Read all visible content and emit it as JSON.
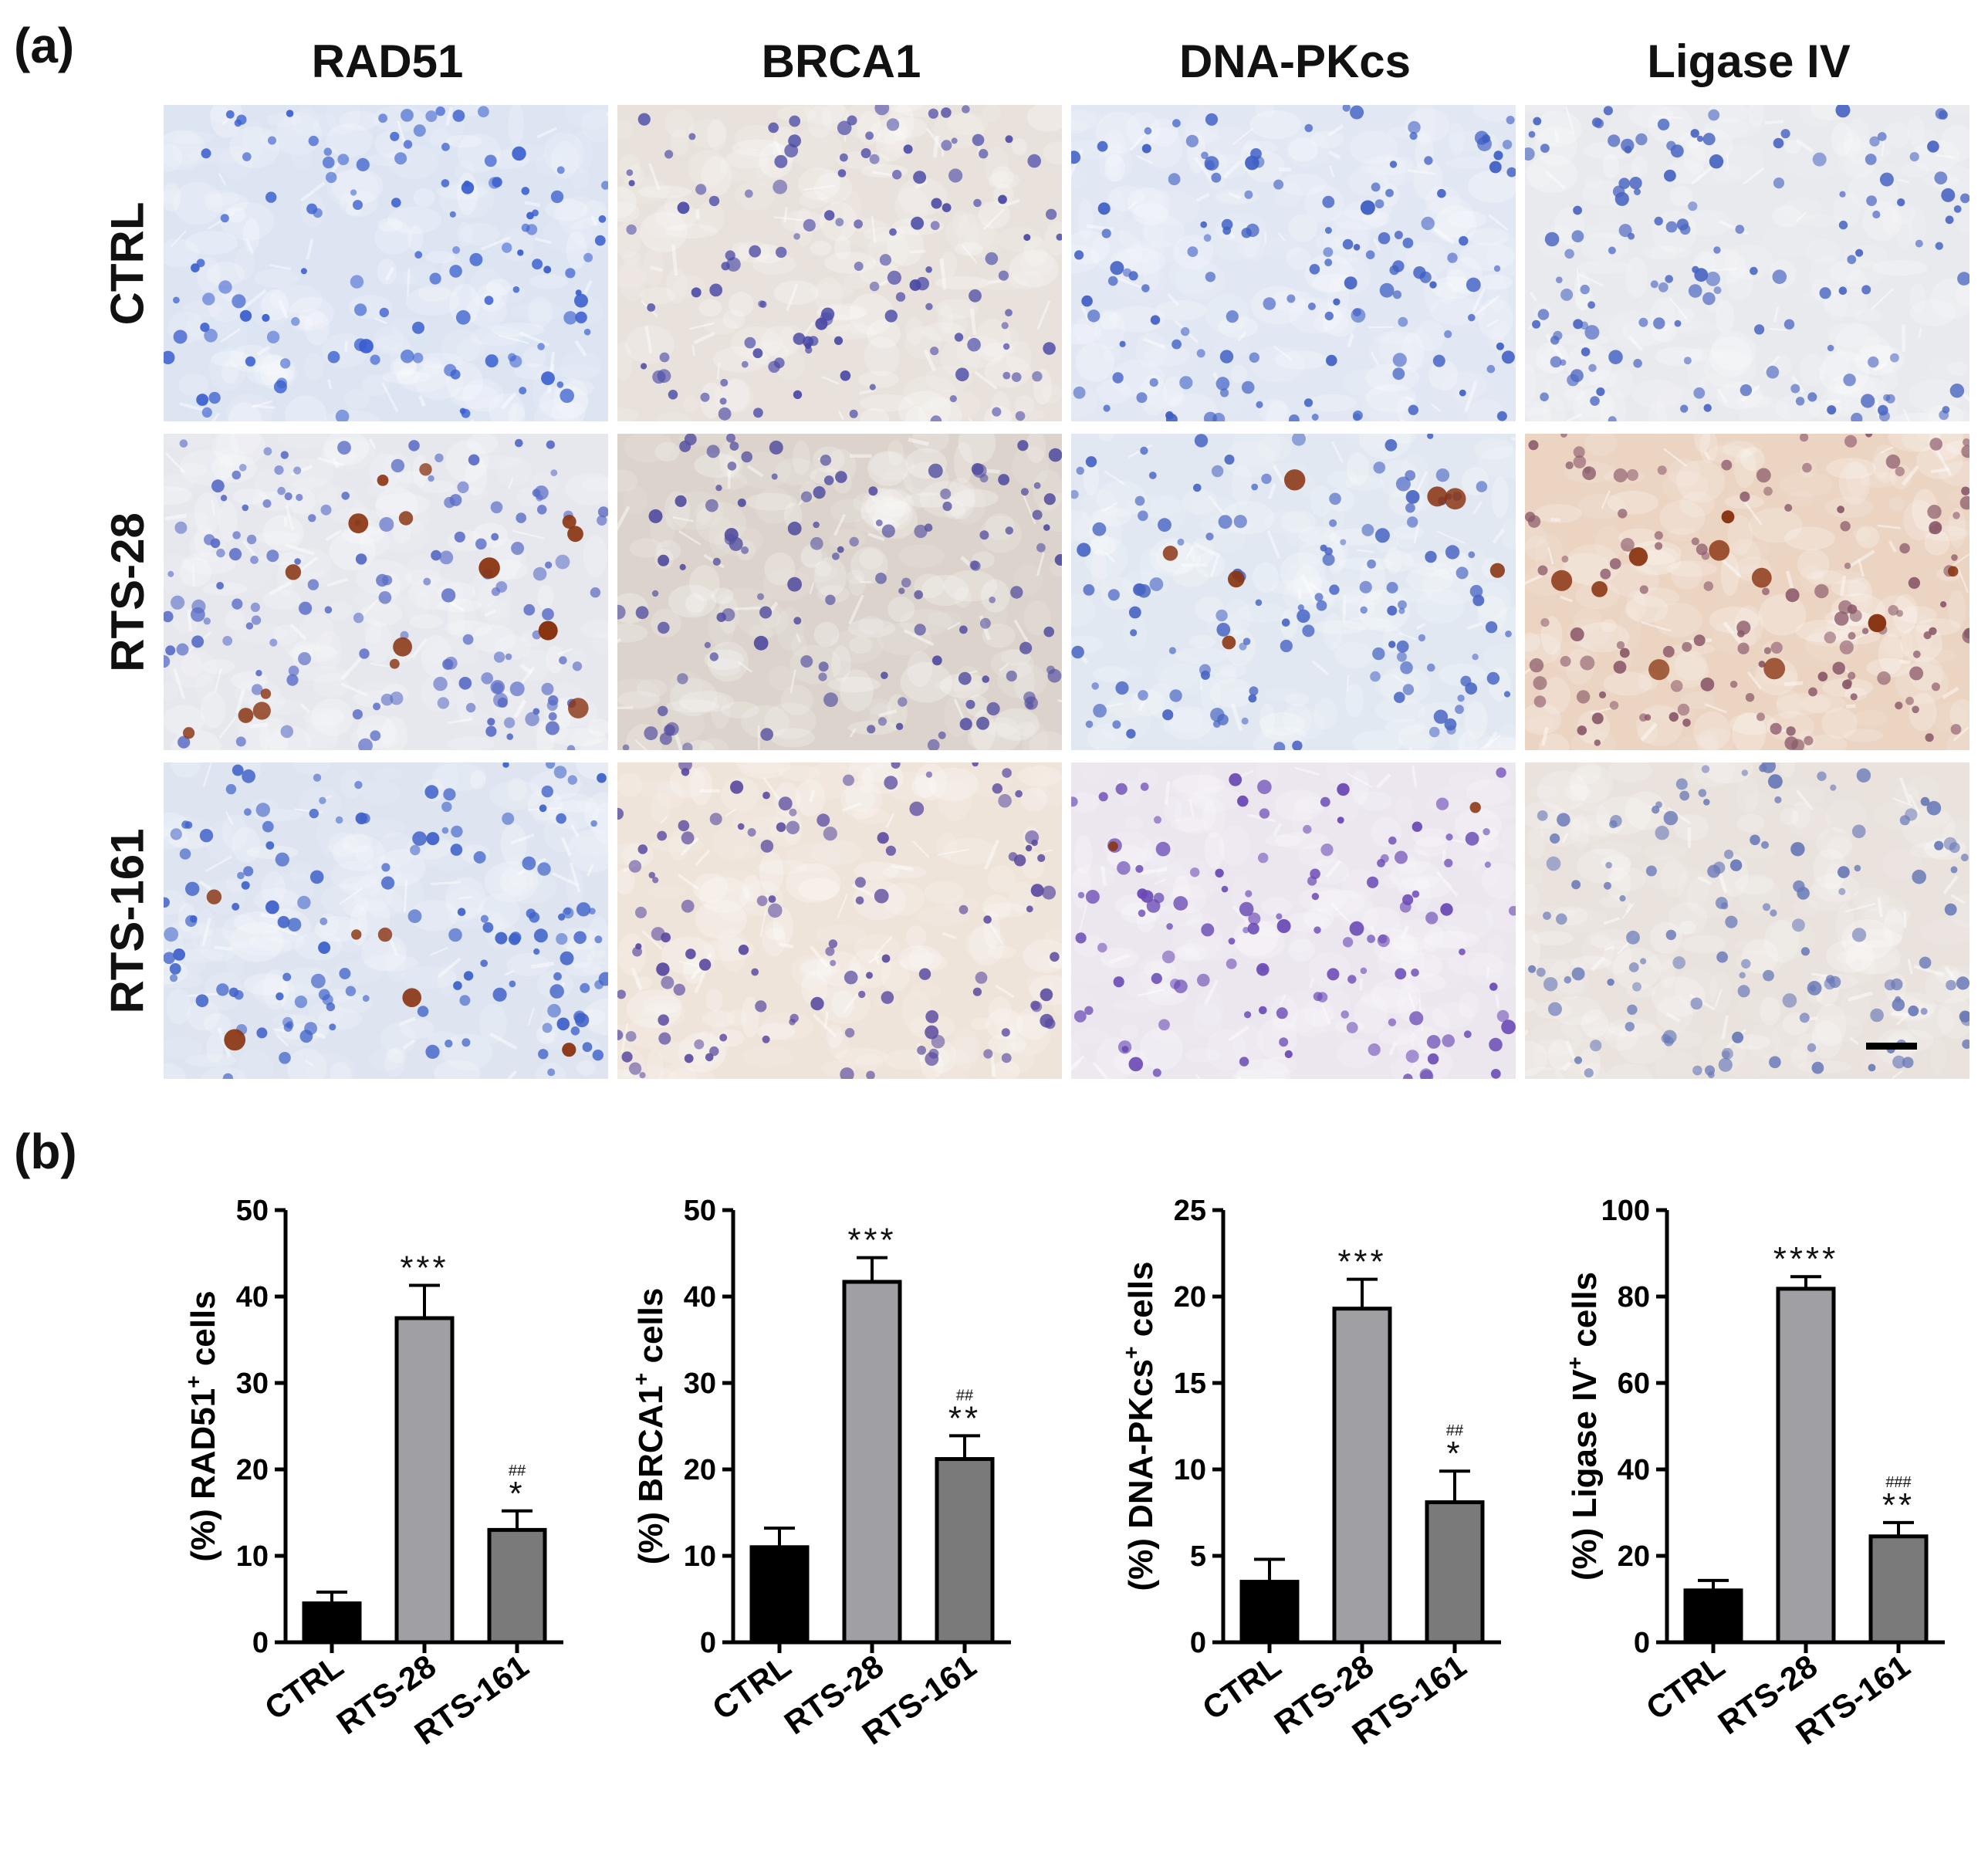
{
  "panel_labels": {
    "a": "(a)",
    "b": "(b)"
  },
  "columns": [
    "RAD51",
    "BRCA1",
    "DNA-PKcs",
    "Ligase IV"
  ],
  "rows": [
    "CTRL",
    "RTS-28",
    "RTS-161"
  ],
  "colors": {
    "bar_ctrl": "#000000",
    "bar_rts28": "#a0a0a4",
    "bar_rts161": "#7a7a7a",
    "nuclei_blue": "#3f63c9",
    "nuclei_purple": "#5a4aa8",
    "stain_brown": "#8a3512",
    "tissue_blue": "#dfe6f2",
    "tissue_tan": "#e8d8c6"
  },
  "micrographs": [
    {
      "column": "RAD51",
      "row": "CTRL",
      "background": "#dde5f3",
      "nuclei_color": "#3a5fcf",
      "brown_cells": 0,
      "cytoplasm_tint": "#dde5f3"
    },
    {
      "column": "BRCA1",
      "row": "CTRL",
      "background": "#e9e2dc",
      "nuclei_color": "#4a4aa6",
      "brown_cells": 0,
      "cytoplasm_tint": "#e9e2dc"
    },
    {
      "column": "DNA-PKcs",
      "row": "CTRL",
      "background": "#e1e7f3",
      "nuclei_color": "#3d5ec4",
      "brown_cells": 0,
      "cytoplasm_tint": "#e1e7f3"
    },
    {
      "column": "Ligase IV",
      "row": "CTRL",
      "background": "#e8eaee",
      "nuclei_color": "#4b66c2",
      "brown_cells": 0,
      "cytoplasm_tint": "#e8eaee"
    },
    {
      "column": "RAD51",
      "row": "RTS-28",
      "background": "#e6e8ee",
      "nuclei_color": "#5a6cc6",
      "brown_cells": 16,
      "cytoplasm_tint": "#e6e8ee"
    },
    {
      "column": "BRCA1",
      "row": "RTS-28",
      "background": "#dcd4cc",
      "nuclei_color": "#5450a0",
      "brown_cells": 0,
      "cytoplasm_tint": "#dcd4cc"
    },
    {
      "column": "DNA-PKcs",
      "row": "RTS-28",
      "background": "#e1e8f1",
      "nuclei_color": "#4a66c4",
      "brown_cells": 7,
      "cytoplasm_tint": "#e1e8f1"
    },
    {
      "column": "Ligase IV",
      "row": "RTS-28",
      "background": "#ebd4c2",
      "nuclei_color": "#8b5a6a",
      "brown_cells": 10,
      "cytoplasm_tint": "#ebd4c2"
    },
    {
      "column": "RAD51",
      "row": "RTS-161",
      "background": "#dee5f1",
      "nuclei_color": "#3f62c9",
      "brown_cells": 6,
      "cytoplasm_tint": "#dee5f1"
    },
    {
      "column": "BRCA1",
      "row": "RTS-161",
      "background": "#efe4da",
      "nuclei_color": "#5b4ba0",
      "brown_cells": 0,
      "cytoplasm_tint": "#efe4da"
    },
    {
      "column": "DNA-PKcs",
      "row": "RTS-161",
      "background": "#ece6ef",
      "nuclei_color": "#6a4ab5",
      "brown_cells": 2,
      "cytoplasm_tint": "#ece6ef"
    },
    {
      "column": "Ligase IV",
      "row": "RTS-161",
      "background": "#e9e2dd",
      "nuclei_color": "#6a7ab8",
      "brown_cells": 0,
      "cytoplasm_tint": "#e9e2dd"
    }
  ],
  "chart_data": [
    {
      "type": "bar",
      "categories": [
        "CTRL",
        "RTS-28",
        "RTS-161"
      ],
      "values": [
        4.5,
        37.5,
        13.0
      ],
      "errors": [
        1.3,
        3.8,
        2.2
      ],
      "ylabel_prefix": "(%) RAD51",
      "ylabel_sup": "+",
      "ylabel_suffix": " cells",
      "ylim": [
        0,
        50
      ],
      "yticks": [
        0,
        10,
        20,
        30,
        40,
        50
      ],
      "annotations": [
        "",
        "***",
        "*"
      ],
      "hash_annotations": [
        "",
        "",
        "##"
      ]
    },
    {
      "type": "bar",
      "categories": [
        "CTRL",
        "RTS-28",
        "RTS-161"
      ],
      "values": [
        11.0,
        41.7,
        21.2
      ],
      "errors": [
        2.2,
        2.8,
        2.7
      ],
      "ylabel_prefix": "(%) BRCA1",
      "ylabel_sup": "+",
      "ylabel_suffix": " cells",
      "ylim": [
        0,
        50
      ],
      "yticks": [
        0,
        10,
        20,
        30,
        40,
        50
      ],
      "annotations": [
        "",
        "***",
        "**"
      ],
      "hash_annotations": [
        "",
        "",
        "##"
      ]
    },
    {
      "type": "bar",
      "categories": [
        "CTRL",
        "RTS-28",
        "RTS-161"
      ],
      "values": [
        3.5,
        19.3,
        8.1
      ],
      "errors": [
        1.3,
        1.7,
        1.8
      ],
      "ylabel_prefix": "(%) DNA-PKcs",
      "ylabel_sup": "+",
      "ylabel_suffix": " cells",
      "ylim": [
        0,
        25
      ],
      "yticks": [
        0,
        5,
        10,
        15,
        20,
        25
      ],
      "annotations": [
        "",
        "***",
        "*"
      ],
      "hash_annotations": [
        "",
        "",
        "##"
      ]
    },
    {
      "type": "bar",
      "categories": [
        "CTRL",
        "RTS-28",
        "RTS-161"
      ],
      "values": [
        12.0,
        81.8,
        24.5
      ],
      "errors": [
        2.3,
        2.8,
        3.2
      ],
      "ylabel_prefix": "(%) Ligase IV",
      "ylabel_sup": "+",
      "ylabel_suffix": " cells",
      "ylim": [
        0,
        100
      ],
      "yticks": [
        0,
        20,
        40,
        60,
        80,
        100
      ],
      "annotations": [
        "",
        "****",
        "**"
      ],
      "hash_annotations": [
        "",
        "",
        "###"
      ]
    }
  ]
}
